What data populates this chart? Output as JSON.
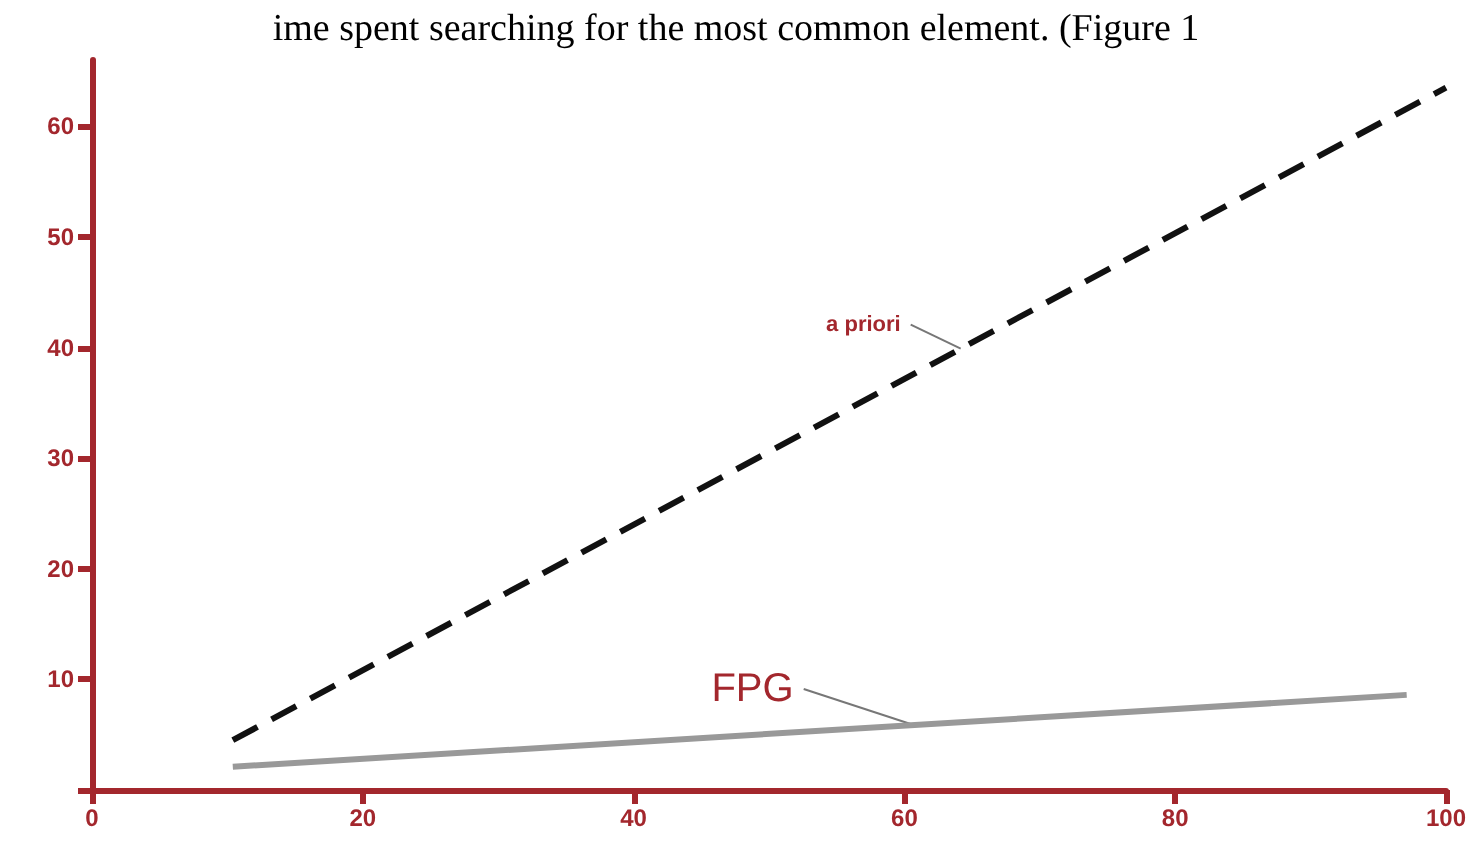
{
  "chart_data": {
    "type": "line",
    "title": "ime spent searching for the most common element. (Figure 1",
    "series": [
      {
        "name": "a priori",
        "color": "#111111",
        "line_style": "dashed",
        "x": [
          10.4,
          100
        ],
        "values": [
          4.5,
          63.5
        ]
      },
      {
        "name": "FPG",
        "color": "#999999",
        "line_style": "solid",
        "x": [
          10.4,
          97.1
        ],
        "values": [
          2.1,
          8.6
        ]
      }
    ],
    "xlim": [
      0,
      100
    ],
    "xticks": [
      0,
      20,
      40,
      60,
      80,
      100
    ],
    "ylim": [
      0,
      66
    ],
    "yticks": [
      {
        "value": 0,
        "label": null
      },
      10,
      20,
      30,
      40,
      50,
      60
    ],
    "grid": false,
    "legend": false,
    "marker": "none"
  }
}
